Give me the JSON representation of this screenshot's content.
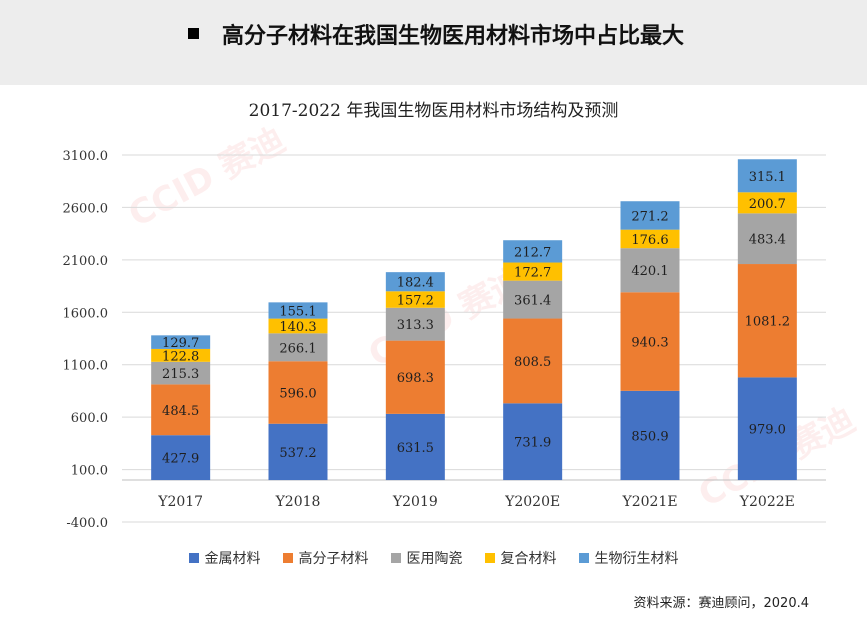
{
  "header": {
    "bullet": "■",
    "title": "高分子材料在我国生物医用材料市场中占比最大"
  },
  "chart_data": {
    "type": "bar",
    "stacked": true,
    "title": "2017-2022 年我国生物医用材料市场结构及预测",
    "xlabel": "",
    "ylabel": "",
    "categories": [
      "Y2017",
      "Y2018",
      "Y2019",
      "Y2020E",
      "Y2021E",
      "Y2022E"
    ],
    "y_ticks": [
      "3100.0",
      "2600.0",
      "2100.0",
      "1600.0",
      "1100.0",
      "600.0",
      "100.0",
      "-400.0"
    ],
    "ylim": [
      -400,
      3100
    ],
    "grid": true,
    "legend_position": "bottom",
    "series": [
      {
        "name": "金属材料",
        "color": "#4472c4",
        "values": [
          427.9,
          537.2,
          631.5,
          731.9,
          850.9,
          979.0
        ]
      },
      {
        "name": "高分子材料",
        "color": "#ed7d31",
        "values": [
          484.5,
          596.0,
          698.3,
          808.5,
          940.3,
          1081.2
        ]
      },
      {
        "name": "医用陶瓷",
        "color": "#a5a5a5",
        "values": [
          215.3,
          266.1,
          313.3,
          361.4,
          420.1,
          483.4
        ]
      },
      {
        "name": "复合材料",
        "color": "#ffc000",
        "values": [
          122.8,
          140.3,
          157.2,
          172.7,
          176.6,
          200.7
        ]
      },
      {
        "name": "生物衍生材料",
        "color": "#5b9bd5",
        "values": [
          129.7,
          155.1,
          182.4,
          212.7,
          271.2,
          315.1
        ]
      }
    ]
  },
  "watermark": "CCID 赛迪",
  "source": "资料来源：赛迪顾问，2020.4"
}
